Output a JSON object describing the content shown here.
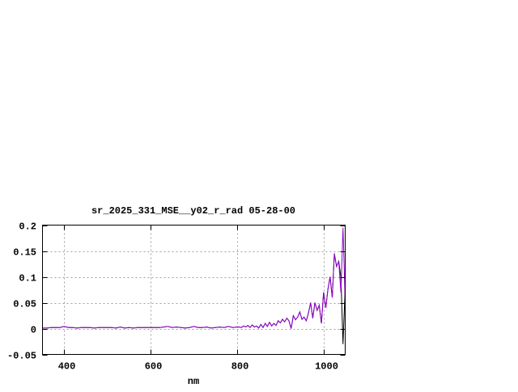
{
  "chart_data": {
    "type": "line",
    "title": "sr_2025_331_MSE__y02_r_rad 05-28-00",
    "xlabel": "nm",
    "ylabel": "",
    "xlim": [
      350,
      1050
    ],
    "ylim": [
      -0.05,
      0.2
    ],
    "grid": true,
    "xticks": [
      400,
      600,
      800,
      1000
    ],
    "xtick_labels": [
      "400",
      "600",
      "800",
      "1000"
    ],
    "yticks": [
      -0.05,
      0,
      0.05,
      0.1,
      0.15,
      0.2
    ],
    "ytick_labels": [
      "-0.05",
      "0",
      "0.05",
      "0.1",
      "0.15",
      "0.2"
    ],
    "x": [
      350,
      360,
      370,
      380,
      390,
      400,
      410,
      420,
      430,
      440,
      450,
      460,
      470,
      480,
      490,
      500,
      510,
      520,
      530,
      540,
      550,
      560,
      570,
      580,
      590,
      600,
      610,
      620,
      630,
      640,
      650,
      660,
      670,
      680,
      690,
      700,
      710,
      720,
      730,
      740,
      750,
      760,
      770,
      780,
      790,
      800,
      805,
      810,
      815,
      820,
      825,
      830,
      835,
      840,
      845,
      850,
      855,
      860,
      865,
      870,
      875,
      880,
      885,
      890,
      895,
      900,
      905,
      910,
      915,
      920,
      925,
      930,
      935,
      940,
      945,
      950,
      955,
      960,
      965,
      970,
      975,
      980,
      985,
      990,
      995,
      1000,
      1005,
      1010,
      1015,
      1020,
      1025,
      1030,
      1035,
      1040,
      1045,
      1050
    ],
    "series": [
      {
        "color": "#000000",
        "values": [
          0.001,
          0.001,
          0.002,
          0.002,
          0.002,
          0.004,
          0.002,
          0.002,
          0.001,
          0.002,
          0.002,
          0.002,
          0.001,
          0.002,
          0.002,
          0.002,
          0.002,
          0.001,
          0.003,
          0.001,
          0.002,
          0.001,
          0.002,
          0.002,
          0.002,
          0.002,
          0.002,
          0.002,
          0.003,
          0.004,
          0.002,
          0.003,
          0.002,
          0.001,
          0.002,
          0.004,
          0.002,
          0.002,
          0.003,
          0.001,
          0.002,
          0.003,
          0.002,
          0.004,
          0.002,
          0.003,
          0.003,
          0.002,
          0.005,
          0.003,
          0.006,
          0.002,
          0.007,
          0.003,
          0.005,
          0.001,
          0.008,
          0.002,
          0.01,
          0.004,
          0.012,
          0.005,
          0.01,
          0.006,
          0.015,
          0.011,
          0.018,
          0.013,
          0.02,
          0.015,
          0.0,
          0.025,
          0.017,
          0.022,
          0.032,
          0.018,
          0.022,
          0.015,
          0.03,
          0.05,
          0.02,
          0.05,
          0.035,
          0.045,
          0.01,
          0.07,
          0.04,
          0.075,
          0.1,
          0.06,
          0.145,
          0.12,
          0.13,
          0.1,
          -0.03,
          0.08
        ]
      },
      {
        "color": "#9400d3",
        "values": [
          0.001,
          0.001,
          0.002,
          0.002,
          0.002,
          0.004,
          0.002,
          0.002,
          0.001,
          0.002,
          0.002,
          0.002,
          0.001,
          0.002,
          0.002,
          0.002,
          0.002,
          0.001,
          0.003,
          0.001,
          0.002,
          0.001,
          0.002,
          0.002,
          0.002,
          0.002,
          0.002,
          0.002,
          0.003,
          0.004,
          0.002,
          0.003,
          0.002,
          0.001,
          0.002,
          0.004,
          0.002,
          0.002,
          0.003,
          0.001,
          0.002,
          0.003,
          0.002,
          0.004,
          0.002,
          0.003,
          0.003,
          0.002,
          0.005,
          0.003,
          0.006,
          0.002,
          0.007,
          0.003,
          0.005,
          0.001,
          0.008,
          0.002,
          0.01,
          0.004,
          0.012,
          0.005,
          0.01,
          0.006,
          0.015,
          0.011,
          0.018,
          0.013,
          0.02,
          0.015,
          0.0,
          0.025,
          0.017,
          0.022,
          0.032,
          0.018,
          0.022,
          0.015,
          0.03,
          0.05,
          0.02,
          0.05,
          0.035,
          0.045,
          0.01,
          0.07,
          0.04,
          0.075,
          0.1,
          0.06,
          0.145,
          0.12,
          0.13,
          0.07,
          0.195,
          0.05
        ]
      }
    ]
  }
}
